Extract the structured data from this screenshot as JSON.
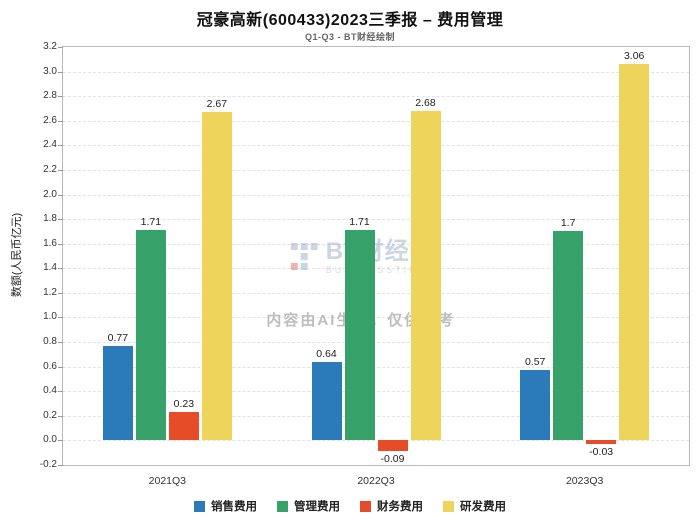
{
  "title": "冠豪高新(600433)2023三季报 – 费用管理",
  "subtitle": "Q1-Q3 - BT财经绘制",
  "watermark": {
    "logo_text": "BT财经",
    "logo_subtext": "BUSINESSTIMES",
    "notice": "内容由AI生成，仅供参考"
  },
  "chart_data": {
    "type": "bar",
    "title": "冠豪高新(600433)2023三季报 – 费用管理",
    "subtitle": "Q1-Q3 - BT财经绘制",
    "xlabel": "",
    "ylabel": "数额(人民币亿元)",
    "ylim": [
      -0.2,
      3.2
    ],
    "ytick_step": 0.2,
    "grid": true,
    "legend_position": "bottom",
    "categories": [
      "2021Q3",
      "2022Q3",
      "2023Q3"
    ],
    "series": [
      {
        "name": "销售费用",
        "color": "#2B7BBA",
        "values": [
          0.77,
          0.64,
          0.57
        ],
        "labels": [
          "0.77",
          "0.64",
          "0.57"
        ]
      },
      {
        "name": "管理费用",
        "color": "#36A269",
        "values": [
          1.71,
          1.71,
          1.7
        ],
        "labels": [
          "1.71",
          "1.71",
          "1.7"
        ]
      },
      {
        "name": "财务费用",
        "color": "#E54C27",
        "values": [
          0.23,
          -0.09,
          -0.03
        ],
        "labels": [
          "0.23",
          "-0.09",
          "-0.03"
        ]
      },
      {
        "name": "研发费用",
        "color": "#EFD45C",
        "values": [
          2.67,
          2.68,
          3.06
        ],
        "labels": [
          "2.67",
          "2.68",
          "3.06"
        ]
      }
    ]
  }
}
